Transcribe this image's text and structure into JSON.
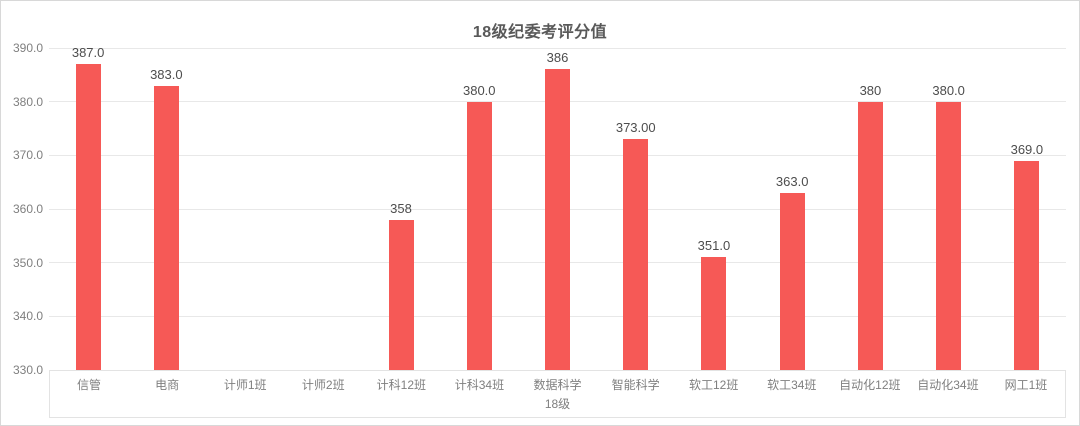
{
  "window": {
    "background": "#ffffff",
    "border_color": "#d8d8d8"
  },
  "chart_data": {
    "type": "bar",
    "title": "18级纪委考评分值",
    "categories": [
      "信管",
      "电商",
      "计师1班",
      "计师2班",
      "计科12班",
      "计科34班",
      "数据科学",
      "智能科学",
      "软工12班",
      "软工34班",
      "自动化12班",
      "自动化34班",
      "网工1班"
    ],
    "values": [
      387,
      383,
      null,
      null,
      358,
      380,
      386,
      373,
      351,
      363,
      380,
      380,
      369
    ],
    "value_labels": [
      "387.0",
      "383.0",
      null,
      null,
      "358",
      "380.0",
      "386",
      "373.00",
      "351.0",
      "363.0",
      "380",
      "380.0",
      "369.0"
    ],
    "xlabel": "18级",
    "ylabel": "",
    "ylim": [
      330,
      390
    ],
    "ytick_step": 10,
    "ytick_labels": [
      "330.0",
      "340.0",
      "350.0",
      "360.0",
      "370.0",
      "380.0",
      "390.0"
    ],
    "grid": true,
    "legend_position": "none",
    "colors": {
      "bar": "#f65956",
      "value_label": "#4d4d4d",
      "axis_label": "#7f7f7f",
      "gridline": "#e8e8e8",
      "title": "#595959",
      "axis_box_border": "#e3e3e3"
    }
  }
}
